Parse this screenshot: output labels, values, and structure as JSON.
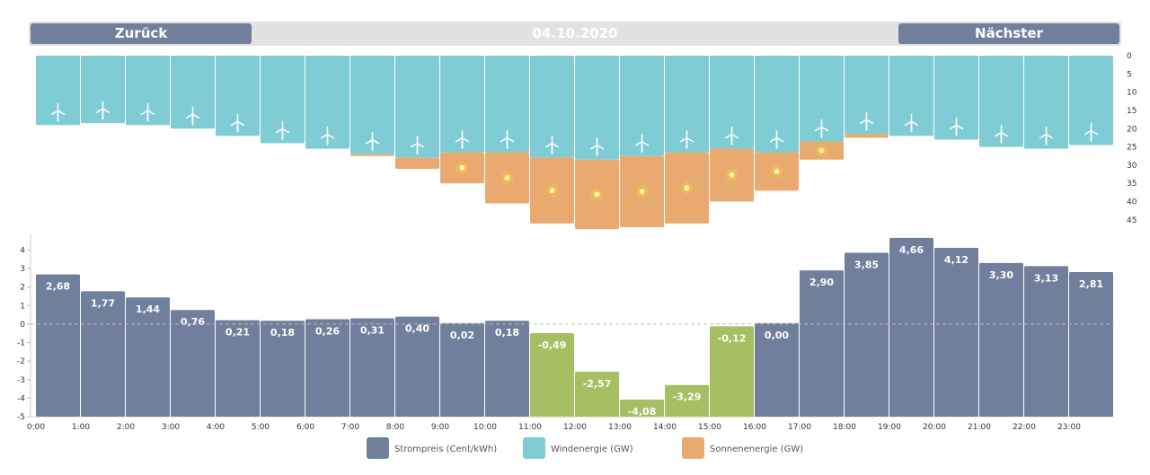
{
  "nav": {
    "prev_label": "Zurück",
    "date": "04.10.2020",
    "next_label": "Nächster"
  },
  "colors": {
    "price": "#6f7f9c",
    "price_negative": "#a5bf62",
    "wind": "#80ccd4",
    "solar": "#e8aa6e",
    "sun": "#f7c942"
  },
  "chart_data": [
    {
      "type": "bar",
      "stacked": true,
      "inverted_y": true,
      "categories": [
        "0:00",
        "1:00",
        "2:00",
        "3:00",
        "4:00",
        "5:00",
        "6:00",
        "7:00",
        "8:00",
        "9:00",
        "10:00",
        "11:00",
        "12:00",
        "13:00",
        "14:00",
        "15:00",
        "16:00",
        "17:00",
        "18:00",
        "19:00",
        "20:00",
        "21:00",
        "22:00",
        "23:00"
      ],
      "series": [
        {
          "name": "Windenergie (GW)",
          "values": [
            19,
            18.5,
            19,
            20,
            22,
            24,
            25.5,
            27,
            28,
            26.5,
            26.5,
            28,
            28.5,
            27.5,
            26.5,
            25.5,
            26.5,
            23.5,
            21.5,
            22,
            23,
            25,
            25.5,
            24.5
          ]
        },
        {
          "name": "Sonnenenergie (GW)",
          "values": [
            0,
            0,
            0,
            0,
            0,
            0,
            0,
            0.5,
            3,
            8.5,
            14,
            18,
            19,
            19.5,
            19.5,
            14.5,
            10.5,
            5,
            1,
            0,
            0,
            0,
            0,
            0
          ]
        }
      ],
      "ylim": [
        0,
        48
      ],
      "yticks": [
        "0",
        "5",
        "10",
        "15",
        "20",
        "25",
        "30",
        "35",
        "40",
        "45"
      ]
    },
    {
      "type": "bar",
      "categories": [
        "0:00",
        "1:00",
        "2:00",
        "3:00",
        "4:00",
        "5:00",
        "6:00",
        "7:00",
        "8:00",
        "9:00",
        "10:00",
        "11:00",
        "12:00",
        "13:00",
        "14:00",
        "15:00",
        "16:00",
        "17:00",
        "18:00",
        "19:00",
        "20:00",
        "21:00",
        "22:00",
        "23:00"
      ],
      "series": [
        {
          "name": "Strompreis (Cent/kWh)",
          "values": [
            2.68,
            1.77,
            1.44,
            0.76,
            0.21,
            0.18,
            0.26,
            0.31,
            0.4,
            0.02,
            0.18,
            -0.49,
            -2.57,
            -4.08,
            -3.29,
            -0.12,
            0.0,
            2.9,
            3.85,
            4.66,
            4.12,
            3.3,
            3.13,
            2.81
          ]
        }
      ],
      "data_labels": [
        "2,68",
        "1,77",
        "1,44",
        "0,76",
        "0,21",
        "0,18",
        "0,26",
        "0,31",
        "0,40",
        "0,02",
        "0,18",
        "-0,49",
        "-2,57",
        "-4,08",
        "-3,29",
        "-0,12",
        "0,00",
        "2,90",
        "3,85",
        "4,66",
        "4,12",
        "3,30",
        "3,13",
        "2,81"
      ],
      "ylim": [
        -5,
        4.7
      ],
      "yticks": [
        "4",
        "3",
        "2",
        "1",
        "0",
        "-1",
        "-2",
        "-3",
        "-4",
        "-5"
      ]
    }
  ],
  "legend": [
    {
      "label": "Strompreis (Cent/kWh)",
      "color": "#6f7f9c"
    },
    {
      "label": "Windenergie (GW)",
      "color": "#80ccd4"
    },
    {
      "label": "Sonnenenergie (GW)",
      "color": "#e8aa6e"
    }
  ]
}
